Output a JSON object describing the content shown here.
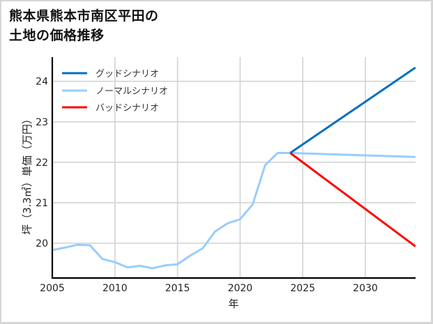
{
  "title": {
    "line1": "熊本県熊本市南区平田の",
    "line2": "土地の価格推移"
  },
  "chart_data": {
    "type": "line",
    "title": "熊本県熊本市南区平田の土地の価格推移",
    "xlabel": "年",
    "ylabel": "坪（3.3㎡）単価（万円）",
    "xlim": [
      2005,
      2034
    ],
    "ylim": [
      19.2,
      24.5
    ],
    "x_ticks": [
      2005,
      2010,
      2015,
      2020,
      2025,
      2030
    ],
    "y_ticks": [
      20,
      21,
      22,
      23,
      24
    ],
    "grid": true,
    "legend_position": "upper left",
    "series": [
      {
        "name": "グッドシナリオ",
        "color": "#0070c0",
        "x": [
          2024,
          2034
        ],
        "values": [
          22.23,
          24.34
        ]
      },
      {
        "name": "ノーマルシナリオ",
        "color": "#99ccff",
        "x": [
          2005,
          2006,
          2007,
          2008,
          2009,
          2010,
          2011,
          2012,
          2013,
          2014,
          2015,
          2016,
          2017,
          2018,
          2019,
          2020,
          2021,
          2022,
          2023,
          2024,
          2034
        ],
        "values": [
          19.83,
          19.89,
          19.96,
          19.95,
          19.61,
          19.53,
          19.4,
          19.44,
          19.38,
          19.45,
          19.48,
          19.69,
          19.87,
          20.29,
          20.49,
          20.59,
          20.96,
          21.93,
          22.23,
          22.23,
          22.13
        ]
      },
      {
        "name": "バッドシナリオ",
        "color": "#ff0000",
        "x": [
          2024,
          2034
        ],
        "values": [
          22.23,
          19.92
        ]
      }
    ]
  }
}
